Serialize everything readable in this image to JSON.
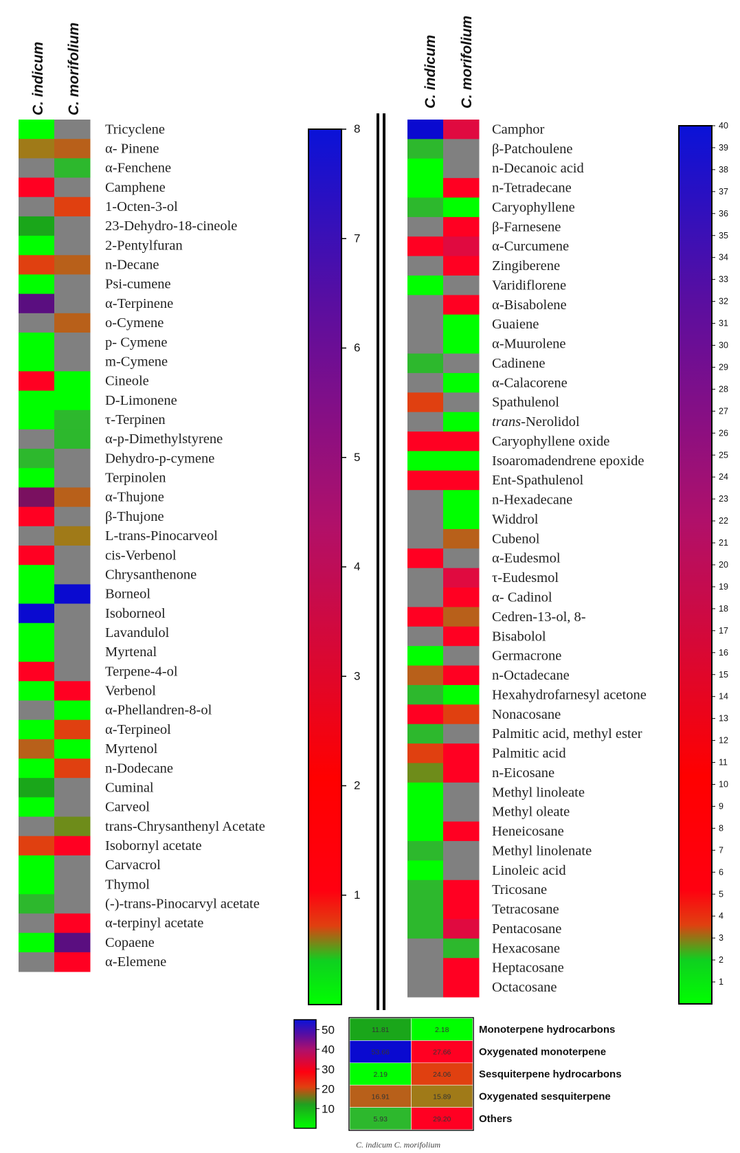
{
  "palette": {
    "G": "#00ff00",
    "D": "#1aa61a",
    "M": "#2db82d",
    "R": "#ff0022",
    "O": "#e04010",
    "B": "#b8601a",
    "K": "#a07a18",
    "N": "#6e8c1a",
    "X": "#808080",
    "P": "#5a0e80",
    "Q": "#7a1060",
    "U": "#0a0ad0",
    "C": "#e00a40"
  },
  "chart_data": [
    {
      "type": "heatmap",
      "columns": [
        "C. indicum",
        "C. morifolium"
      ],
      "colorbar": {
        "min": 0,
        "max": 8,
        "ticks": [
          "1",
          "2",
          "3",
          "4",
          "5",
          "6",
          "7",
          "8"
        ]
      },
      "rows": [
        {
          "label": "Tricyclene",
          "c": [
            "G",
            "X"
          ]
        },
        {
          "label": "α- Pinene",
          "c": [
            "K",
            "B"
          ]
        },
        {
          "label": "α-Fenchene",
          "c": [
            "X",
            "M"
          ]
        },
        {
          "label": "Camphene",
          "c": [
            "R",
            "X"
          ]
        },
        {
          "label": "1-Octen-3-ol",
          "c": [
            "X",
            "O"
          ]
        },
        {
          "label": "23-Dehydro-18-cineole",
          "c": [
            "D",
            "X"
          ]
        },
        {
          "label": "2-Pentylfuran",
          "c": [
            "G",
            "X"
          ]
        },
        {
          "label": "n-Decane",
          "c": [
            "O",
            "B"
          ]
        },
        {
          "label": "Psi-cumene",
          "c": [
            "G",
            "X"
          ]
        },
        {
          "label": "α-Terpinene",
          "c": [
            "P",
            "X"
          ]
        },
        {
          "label": "o-Cymene",
          "c": [
            "X",
            "B"
          ]
        },
        {
          "label": "p- Cymene",
          "c": [
            "G",
            "X"
          ]
        },
        {
          "label": "m-Cymene",
          "c": [
            "G",
            "X"
          ]
        },
        {
          "label": "Cineole",
          "c": [
            "R",
            "G"
          ]
        },
        {
          "label": "D-Limonene",
          "c": [
            "G",
            "G"
          ]
        },
        {
          "label": "τ-Terpinen",
          "c": [
            "G",
            "M"
          ]
        },
        {
          "label": "α-p-Dimethylstyrene",
          "c": [
            "X",
            "M"
          ]
        },
        {
          "label": "Dehydro-p-cymene",
          "c": [
            "M",
            "X"
          ]
        },
        {
          "label": "Terpinolen",
          "c": [
            "G",
            "X"
          ]
        },
        {
          "label": "α-Thujone",
          "c": [
            "Q",
            "B"
          ]
        },
        {
          "label": "β-Thujone",
          "c": [
            "R",
            "X"
          ]
        },
        {
          "label": "L-trans-Pinocarveol",
          "c": [
            "X",
            "K"
          ]
        },
        {
          "label": "cis-Verbenol",
          "c": [
            "R",
            "X"
          ]
        },
        {
          "label": "Chrysanthenone",
          "c": [
            "G",
            "X"
          ]
        },
        {
          "label": "Borneol",
          "c": [
            "G",
            "U"
          ]
        },
        {
          "label": "Isoborneol",
          "c": [
            "U",
            "X"
          ]
        },
        {
          "label": "Lavandulol",
          "c": [
            "G",
            "X"
          ]
        },
        {
          "label": "Myrtenal",
          "c": [
            "G",
            "X"
          ]
        },
        {
          "label": "Terpene-4-ol",
          "c": [
            "R",
            "X"
          ]
        },
        {
          "label": "Verbenol",
          "c": [
            "G",
            "R"
          ]
        },
        {
          "label": "α-Phellandren-8-ol",
          "c": [
            "X",
            "G"
          ]
        },
        {
          "label": "α-Terpineol",
          "c": [
            "G",
            "O"
          ]
        },
        {
          "label": "Myrtenol",
          "c": [
            "B",
            "G"
          ]
        },
        {
          "label": "n-Dodecane",
          "c": [
            "G",
            "O"
          ]
        },
        {
          "label": "Cuminal",
          "c": [
            "D",
            "X"
          ]
        },
        {
          "label": "Carveol",
          "c": [
            "G",
            "X"
          ]
        },
        {
          "label": "trans-Chrysanthenyl Acetate",
          "c": [
            "X",
            "N"
          ]
        },
        {
          "label": "Isobornyl acetate",
          "c": [
            "O",
            "R"
          ]
        },
        {
          "label": "Carvacrol",
          "c": [
            "G",
            "X"
          ]
        },
        {
          "label": "Thymol",
          "c": [
            "G",
            "X"
          ]
        },
        {
          "label": "(-)-trans-Pinocarvyl acetate",
          "c": [
            "M",
            "X"
          ]
        },
        {
          "label": "α-terpinyl acetate",
          "c": [
            "X",
            "R"
          ]
        },
        {
          "label": "Copaene",
          "c": [
            "G",
            "P"
          ]
        },
        {
          "label": "α-Elemene",
          "c": [
            "X",
            "R"
          ]
        }
      ]
    },
    {
      "type": "heatmap",
      "columns": [
        "C. indicum",
        "C. morifolium"
      ],
      "colorbar": {
        "min": 0,
        "max": 40,
        "ticks": [
          "1",
          "2",
          "3",
          "4",
          "5",
          "6",
          "7",
          "8",
          "9",
          "10",
          "11",
          "12",
          "13",
          "14",
          "15",
          "16",
          "17",
          "18",
          "19",
          "20",
          "21",
          "22",
          "23",
          "24",
          "25",
          "26",
          "27",
          "28",
          "29",
          "30",
          "31",
          "32",
          "33",
          "34",
          "35",
          "36",
          "37",
          "38",
          "39",
          "40"
        ]
      },
      "rows": [
        {
          "label": "Camphor",
          "c": [
            "U",
            "C"
          ]
        },
        {
          "label": "β-Patchoulene",
          "c": [
            "M",
            "X"
          ]
        },
        {
          "label": "n-Decanoic acid",
          "c": [
            "G",
            "X"
          ]
        },
        {
          "label": "n-Tetradecane",
          "c": [
            "G",
            "R"
          ]
        },
        {
          "label": "Caryophyllene",
          "c": [
            "M",
            "G"
          ]
        },
        {
          "label": "β-Farnesene",
          "c": [
            "X",
            "R"
          ]
        },
        {
          "label": "α-Curcumene",
          "c": [
            "R",
            "C"
          ]
        },
        {
          "label": "Zingiberene",
          "c": [
            "X",
            "R"
          ]
        },
        {
          "label": "Varidiflorene",
          "c": [
            "G",
            "X"
          ]
        },
        {
          "label": "α-Bisabolene",
          "c": [
            "X",
            "R"
          ]
        },
        {
          "label": "Guaiene",
          "c": [
            "X",
            "G"
          ]
        },
        {
          "label": "α-Muurolene",
          "c": [
            "X",
            "G"
          ]
        },
        {
          "label": "Cadinene",
          "c": [
            "M",
            "X"
          ]
        },
        {
          "label": "α-Calacorene",
          "c": [
            "X",
            "G"
          ]
        },
        {
          "label": "Spathulenol",
          "c": [
            "O",
            "X"
          ]
        },
        {
          "label": "trans-Nerolidol",
          "c": [
            "X",
            "G"
          ],
          "italic_prefix": "trans",
          "rest": "-Nerolidol"
        },
        {
          "label": "Caryophyllene oxide",
          "c": [
            "R",
            "R"
          ]
        },
        {
          "label": "Isoaromadendrene epoxide",
          "c": [
            "G",
            "G"
          ]
        },
        {
          "label": "Ent-Spathulenol",
          "c": [
            "R",
            "R"
          ]
        },
        {
          "label": "n-Hexadecane",
          "c": [
            "X",
            "G"
          ]
        },
        {
          "label": "Widdrol",
          "c": [
            "X",
            "G"
          ]
        },
        {
          "label": "Cubenol",
          "c": [
            "X",
            "B"
          ]
        },
        {
          "label": "α-Eudesmol",
          "c": [
            "R",
            "X"
          ]
        },
        {
          "label": "τ-Eudesmol",
          "c": [
            "X",
            "C"
          ]
        },
        {
          "label": "α- Cadinol",
          "c": [
            "X",
            "R"
          ]
        },
        {
          "label": "Cedren-13-ol, 8-",
          "c": [
            "R",
            "B"
          ]
        },
        {
          "label": "Bisabolol",
          "c": [
            "X",
            "R"
          ]
        },
        {
          "label": "Germacrone",
          "c": [
            "G",
            "X"
          ]
        },
        {
          "label": "n-Octadecane",
          "c": [
            "B",
            "R"
          ]
        },
        {
          "label": "Hexahydrofarnesyl acetone",
          "c": [
            "M",
            "G"
          ]
        },
        {
          "label": "Nonacosane",
          "c": [
            "R",
            "O"
          ]
        },
        {
          "label": "Palmitic acid, methyl ester",
          "c": [
            "M",
            "X"
          ]
        },
        {
          "label": "Palmitic acid",
          "c": [
            "O",
            "R"
          ]
        },
        {
          "label": "n-Eicosane",
          "c": [
            "N",
            "R"
          ]
        },
        {
          "label": "Methyl linoleate",
          "c": [
            "G",
            "X"
          ]
        },
        {
          "label": "Methyl oleate",
          "c": [
            "G",
            "X"
          ]
        },
        {
          "label": "Heneicosane",
          "c": [
            "G",
            "R"
          ]
        },
        {
          "label": "Methyl linolenate",
          "c": [
            "M",
            "X"
          ]
        },
        {
          "label": "Linoleic acid",
          "c": [
            "G",
            "X"
          ]
        },
        {
          "label": "Tricosane",
          "c": [
            "M",
            "R"
          ]
        },
        {
          "label": "Tetracosane",
          "c": [
            "M",
            "R"
          ]
        },
        {
          "label": "Pentacosane",
          "c": [
            "M",
            "C"
          ]
        },
        {
          "label": "Hexacosane",
          "c": [
            "X",
            "M"
          ]
        },
        {
          "label": "Heptacosane",
          "c": [
            "X",
            "R"
          ]
        },
        {
          "label": "Octacosane",
          "c": [
            "X",
            "R"
          ]
        }
      ]
    },
    {
      "type": "heatmap",
      "columns": [
        "C. indicum",
        "C. morifolium"
      ],
      "footer": "C. indicum C. morifolium",
      "colorbar": {
        "min": 0,
        "max": 55,
        "ticks": [
          "10",
          "20",
          "30",
          "40",
          "50"
        ]
      },
      "rows": [
        {
          "label": "Monoterpene hydrocarbons",
          "values": [
            "11.81",
            "2.18"
          ],
          "c": [
            "D",
            "G"
          ]
        },
        {
          "label": "Oxygenated monoterpene",
          "values": [
            "53.66",
            "27.66"
          ],
          "c": [
            "U",
            "R"
          ]
        },
        {
          "label": "Sesquiterpene hydrocarbons",
          "values": [
            "2.19",
            "24.06"
          ],
          "c": [
            "G",
            "O"
          ]
        },
        {
          "label": "Oxygenated sesquiterpene",
          "values": [
            "16.91",
            "15.89"
          ],
          "c": [
            "B",
            "K"
          ]
        },
        {
          "label": "Others",
          "values": [
            "5.93",
            "29.20"
          ],
          "c": [
            "M",
            "R"
          ]
        }
      ]
    }
  ]
}
